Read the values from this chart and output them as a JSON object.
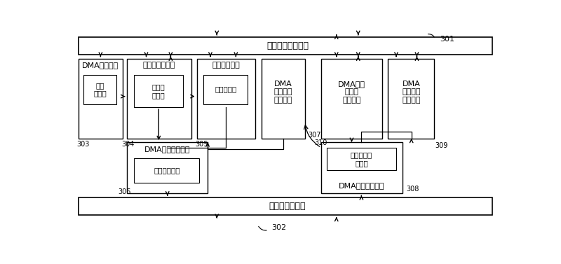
{
  "bg_color": "#ffffff",
  "top_bar_label": "系统总线接口模块",
  "bot_bar_label": "交换机接口模块",
  "labels": {
    "301": "301",
    "302": "302",
    "303": "303",
    "304": "304",
    "305": "305",
    "306": "306",
    "307": "307",
    "308": "308",
    "309": "309",
    "310": "310"
  },
  "fontsize_bar": 9,
  "fontsize_mod": 8,
  "fontsize_sub": 7.5,
  "fontsize_label": 7
}
